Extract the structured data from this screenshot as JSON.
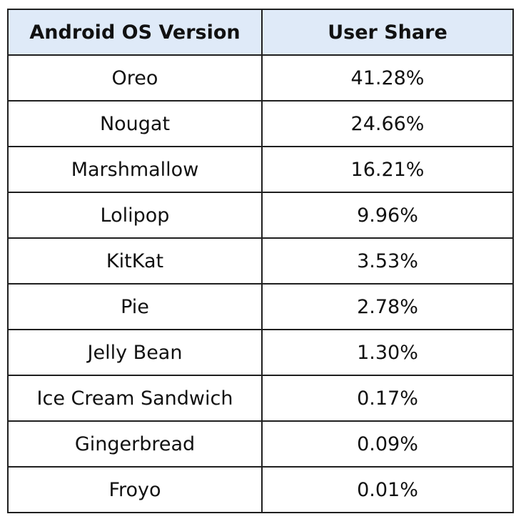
{
  "chart_data": {
    "type": "table",
    "columns": [
      "Android OS Version",
      "User Share"
    ],
    "rows": [
      [
        "Oreo",
        "41.28%"
      ],
      [
        "Nougat",
        "24.66%"
      ],
      [
        "Marshmallow",
        "16.21%"
      ],
      [
        "Lolipop",
        "9.96%"
      ],
      [
        "KitKat",
        "3.53%"
      ],
      [
        "Pie",
        "2.78%"
      ],
      [
        "Jelly Bean",
        "1.30%"
      ],
      [
        "Ice Cream Sandwich",
        "0.17%"
      ],
      [
        "Gingerbread",
        "0.09%"
      ],
      [
        "Froyo",
        "0.01%"
      ]
    ],
    "header_fill": "#dfeaf8",
    "border_color": "#1f1f1f"
  }
}
